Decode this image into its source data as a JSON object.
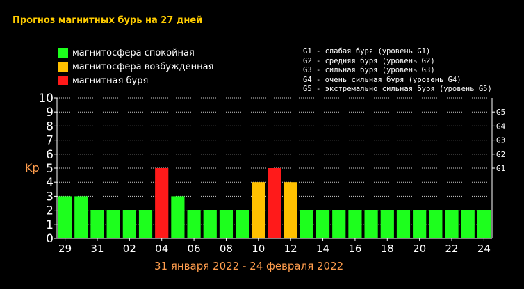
{
  "title": "Прогноз магнитных бурь на 27 дней",
  "legend": [
    {
      "label": "магнитосфера спокойная",
      "color": "#1dff1d"
    },
    {
      "label": "магнитосфера возбужденная",
      "color": "#ffc000"
    },
    {
      "label": "магнитная буря",
      "color": "#ff1a1a"
    }
  ],
  "g_legend": [
    "G1 - слабая буря (уровень G1)",
    "G2 - средняя буря (уровень G2)",
    "G3 - сильная буря (уровень G3)",
    "G4 - очень сильная буря (уровень G4)",
    "G5 - экстремально сильная буря (уровень G5)"
  ],
  "kp_label": "Kp",
  "period": "31 января 2022 - 24 февраля 2022",
  "chart_data": {
    "type": "bar",
    "ylabel": "Kp",
    "ylim": [
      0,
      10
    ],
    "yticks": [
      "0",
      "1",
      "2",
      "3",
      "4",
      "5",
      "6",
      "7",
      "8",
      "9",
      "10"
    ],
    "g_ticks": [
      {
        "label": "G1",
        "value": 5
      },
      {
        "label": "G2",
        "value": 6
      },
      {
        "label": "G3",
        "value": 7
      },
      {
        "label": "G4",
        "value": 8
      },
      {
        "label": "G5",
        "value": 9
      }
    ],
    "x_tick_labels": [
      "29",
      "31",
      "02",
      "04",
      "06",
      "08",
      "10",
      "12",
      "14",
      "16",
      "18",
      "20",
      "22",
      "24"
    ],
    "values": [
      3,
      3,
      2,
      2,
      2,
      2,
      5,
      3,
      2,
      2,
      2,
      2,
      4,
      5,
      4,
      2,
      2,
      2,
      2,
      2,
      2,
      2,
      2,
      2,
      2,
      2,
      2
    ],
    "levels": [
      "calm",
      "calm",
      "calm",
      "calm",
      "calm",
      "calm",
      "storm",
      "calm",
      "calm",
      "calm",
      "calm",
      "calm",
      "excited",
      "storm",
      "excited",
      "calm",
      "calm",
      "calm",
      "calm",
      "calm",
      "calm",
      "calm",
      "calm",
      "calm",
      "calm",
      "calm",
      "calm"
    ],
    "colors": {
      "calm": "#1dff1d",
      "excited": "#ffc000",
      "storm": "#ff1a1a"
    },
    "grid": true
  }
}
